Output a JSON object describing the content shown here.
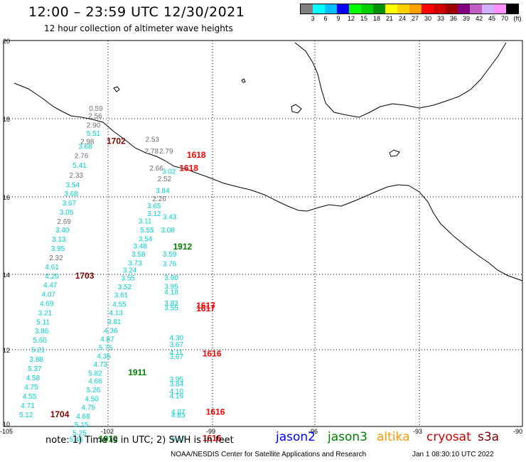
{
  "header": {
    "title": "12:00 – 23:59 UTC 12/30/2021",
    "subtitle": "12 hour collection of altimeter wave heights"
  },
  "colorbar": {
    "colors": [
      "#808080",
      "#00ffff",
      "#00bfff",
      "#0000ff",
      "#00ff00",
      "#00d000",
      "#009000",
      "#ffff00",
      "#ffd000",
      "#ffa000",
      "#ff0000",
      "#d00000",
      "#a00000",
      "#800080",
      "#c060c0",
      "#d0b0ff",
      "#ff90ff",
      "#000000"
    ],
    "labels": [
      "3",
      "6",
      "9",
      "12",
      "15",
      "18",
      "21",
      "24",
      "27",
      "30",
      "33",
      "36",
      "39",
      "42",
      "45",
      "70",
      "(ft)"
    ]
  },
  "axes": {
    "x_ticks": [
      "-105",
      "-102",
      "-99",
      "-96",
      "-93",
      "-90"
    ],
    "y_ticks": [
      "20",
      "18",
      "16",
      "14",
      "12",
      "10"
    ]
  },
  "footer": {
    "note": "note: 1) Time is in UTC; 2) SWH is in feet",
    "credit": "NOAA/NESDIS Center for Satellite Applications and Research",
    "generated": "Jan  1 08:30:10 UTC 2022"
  },
  "legend": [
    {
      "name": "jason2",
      "color": "#0000ff"
    },
    {
      "name": "jason3",
      "color": "#008000"
    },
    {
      "name": "altika",
      "color": "#ff9900"
    },
    {
      "name": "cryosat",
      "color": "#cc0000"
    },
    {
      "name": "s3a",
      "color": "#800000"
    }
  ],
  "colors": {
    "gray": "#707070",
    "cyan": "#00d0d0",
    "darkred": "#800000",
    "red": "#ff0000",
    "green": "#008000"
  },
  "map_labels": [
    {
      "t": "0.59",
      "lon": -102.53,
      "lat": 18.18,
      "c": "gray"
    },
    {
      "t": "2.56",
      "lon": -102.55,
      "lat": 17.98,
      "c": "gray"
    },
    {
      "t": "2.90",
      "lon": -102.6,
      "lat": 17.74,
      "c": "gray"
    },
    {
      "t": "5.51",
      "lon": -102.6,
      "lat": 17.53,
      "c": "cyan"
    },
    {
      "t": "2.98",
      "lon": -102.78,
      "lat": 17.32,
      "c": "gray"
    },
    {
      "t": "1702",
      "lon": -102.02,
      "lat": 17.32,
      "c": "darkred"
    },
    {
      "t": "3.68",
      "lon": -102.84,
      "lat": 17.19,
      "c": "cyan"
    },
    {
      "t": "2.76",
      "lon": -102.95,
      "lat": 16.95,
      "c": "gray"
    },
    {
      "t": "5.41",
      "lon": -103.0,
      "lat": 16.7,
      "c": "cyan"
    },
    {
      "t": "2.33",
      "lon": -103.1,
      "lat": 16.45,
      "c": "gray"
    },
    {
      "t": "3.54",
      "lon": -103.2,
      "lat": 16.2,
      "c": "cyan"
    },
    {
      "t": "3.68",
      "lon": -103.25,
      "lat": 15.97,
      "c": "cyan"
    },
    {
      "t": "3.67",
      "lon": -103.3,
      "lat": 15.73,
      "c": "cyan"
    },
    {
      "t": "3.05",
      "lon": -103.38,
      "lat": 15.49,
      "c": "cyan"
    },
    {
      "t": "2.69",
      "lon": -103.45,
      "lat": 15.25,
      "c": "gray"
    },
    {
      "t": "3.40",
      "lon": -103.5,
      "lat": 15.03,
      "c": "cyan"
    },
    {
      "t": "3.13",
      "lon": -103.6,
      "lat": 14.79,
      "c": "cyan"
    },
    {
      "t": "3.95",
      "lon": -103.63,
      "lat": 14.55,
      "c": "cyan"
    },
    {
      "t": "2.32",
      "lon": -103.68,
      "lat": 14.31,
      "c": "gray"
    },
    {
      "t": "4.61",
      "lon": -103.8,
      "lat": 14.07,
      "c": "cyan"
    },
    {
      "t": "4.20",
      "lon": -103.8,
      "lat": 13.83,
      "c": "cyan"
    },
    {
      "t": "1703",
      "lon": -102.93,
      "lat": 13.83,
      "c": "darkred"
    },
    {
      "t": "4.47",
      "lon": -103.85,
      "lat": 13.6,
      "c": "cyan"
    },
    {
      "t": "4.07",
      "lon": -103.9,
      "lat": 13.36,
      "c": "cyan"
    },
    {
      "t": "4.69",
      "lon": -103.95,
      "lat": 13.12,
      "c": "cyan"
    },
    {
      "t": "3.21",
      "lon": -104.0,
      "lat": 12.88,
      "c": "cyan"
    },
    {
      "t": "5.11",
      "lon": -104.05,
      "lat": 12.64,
      "c": "cyan"
    },
    {
      "t": "3.86",
      "lon": -104.1,
      "lat": 12.41,
      "c": "cyan"
    },
    {
      "t": "5.60",
      "lon": -104.15,
      "lat": 12.17,
      "c": "cyan"
    },
    {
      "t": "5.21",
      "lon": -104.2,
      "lat": 11.92,
      "c": "cyan"
    },
    {
      "t": "3.88",
      "lon": -104.25,
      "lat": 11.68,
      "c": "cyan"
    },
    {
      "t": "5.37",
      "lon": -104.3,
      "lat": 11.44,
      "c": "cyan"
    },
    {
      "t": "4.58",
      "lon": -104.35,
      "lat": 11.2,
      "c": "cyan"
    },
    {
      "t": "4.75",
      "lon": -104.4,
      "lat": 10.96,
      "c": "cyan"
    },
    {
      "t": "4.55",
      "lon": -104.45,
      "lat": 10.72,
      "c": "cyan"
    },
    {
      "t": "4.71",
      "lon": -104.5,
      "lat": 10.48,
      "c": "cyan"
    },
    {
      "t": "5.12",
      "lon": -104.55,
      "lat": 10.24,
      "c": "cyan"
    },
    {
      "t": "1704",
      "lon": -103.65,
      "lat": 10.24,
      "c": "darkred"
    },
    {
      "t": "2.53",
      "lon": -100.9,
      "lat": 17.38,
      "c": "gray"
    },
    {
      "t": "2.78",
      "lon": -100.92,
      "lat": 17.07,
      "c": "gray"
    },
    {
      "t": "2.79",
      "lon": -100.5,
      "lat": 17.07,
      "c": "gray"
    },
    {
      "t": "1618",
      "lon": -99.7,
      "lat": 16.96,
      "c": "red"
    },
    {
      "t": "1618",
      "lon": -99.92,
      "lat": 16.62,
      "c": "red"
    },
    {
      "t": "2.66",
      "lon": -100.78,
      "lat": 16.63,
      "c": "gray"
    },
    {
      "t": "3.02",
      "lon": -100.42,
      "lat": 16.55,
      "c": "cyan"
    },
    {
      "t": "2.52",
      "lon": -100.55,
      "lat": 16.35,
      "c": "gray"
    },
    {
      "t": "3.84",
      "lon": -100.6,
      "lat": 16.05,
      "c": "cyan"
    },
    {
      "t": "2.26",
      "lon": -100.7,
      "lat": 15.84,
      "c": "gray"
    },
    {
      "t": "3.65",
      "lon": -100.85,
      "lat": 15.65,
      "c": "cyan"
    },
    {
      "t": "3.12",
      "lon": -100.85,
      "lat": 15.45,
      "c": "cyan"
    },
    {
      "t": "3.43",
      "lon": -100.4,
      "lat": 15.37,
      "c": "cyan"
    },
    {
      "t": "3.11",
      "lon": -101.1,
      "lat": 15.26,
      "c": "cyan"
    },
    {
      "t": "5.55",
      "lon": -101.05,
      "lat": 15.03,
      "c": "cyan"
    },
    {
      "t": "3.08",
      "lon": -100.45,
      "lat": 15.03,
      "c": "cyan"
    },
    {
      "t": "3.54",
      "lon": -101.1,
      "lat": 14.8,
      "c": "cyan"
    },
    {
      "t": "3.48",
      "lon": -101.25,
      "lat": 14.61,
      "c": "cyan"
    },
    {
      "t": "1912",
      "lon": -100.1,
      "lat": 14.59,
      "c": "green"
    },
    {
      "t": "3.58",
      "lon": -101.3,
      "lat": 14.4,
      "c": "cyan"
    },
    {
      "t": "3.59",
      "lon": -100.4,
      "lat": 14.4,
      "c": "cyan"
    },
    {
      "t": "3.73",
      "lon": -101.4,
      "lat": 14.17,
      "c": "cyan"
    },
    {
      "t": "3.76",
      "lon": -100.4,
      "lat": 14.15,
      "c": "cyan"
    },
    {
      "t": "3.24",
      "lon": -101.55,
      "lat": 13.99,
      "c": "cyan"
    },
    {
      "t": "3.55",
      "lon": -101.6,
      "lat": 13.78,
      "c": "cyan"
    },
    {
      "t": "3.90",
      "lon": -100.35,
      "lat": 13.79,
      "c": "cyan"
    },
    {
      "t": "3.52",
      "lon": -101.7,
      "lat": 13.55,
      "c": "cyan"
    },
    {
      "t": "3.95",
      "lon": -100.35,
      "lat": 13.56,
      "c": "cyan"
    },
    {
      "t": "3.61",
      "lon": -101.8,
      "lat": 13.34,
      "c": "cyan"
    },
    {
      "t": "4.18",
      "lon": -100.35,
      "lat": 13.42,
      "c": "cyan"
    },
    {
      "t": "4.55",
      "lon": -101.85,
      "lat": 13.1,
      "c": "cyan"
    },
    {
      "t": "3.83",
      "lon": -100.35,
      "lat": 13.13,
      "c": "cyan"
    },
    {
      "t": "3.55",
      "lon": -100.35,
      "lat": 13.01,
      "c": "cyan"
    },
    {
      "t": "1617",
      "lon": -99.43,
      "lat": 13.06,
      "c": "red"
    },
    {
      "t": "1617",
      "lon": -99.43,
      "lat": 12.98,
      "c": "red"
    },
    {
      "t": "4.13",
      "lon": -101.95,
      "lat": 12.88,
      "c": "cyan"
    },
    {
      "t": "3.81",
      "lon": -102.0,
      "lat": 12.65,
      "c": "cyan"
    },
    {
      "t": "4.36",
      "lon": -102.1,
      "lat": 12.42,
      "c": "cyan"
    },
    {
      "t": "4.87",
      "lon": -102.2,
      "lat": 12.2,
      "c": "cyan"
    },
    {
      "t": "4.30",
      "lon": -100.2,
      "lat": 12.24,
      "c": "cyan"
    },
    {
      "t": "5.75",
      "lon": -102.25,
      "lat": 11.98,
      "c": "cyan"
    },
    {
      "t": "3.67",
      "lon": -100.2,
      "lat": 12.06,
      "c": "cyan"
    },
    {
      "t": "4.35",
      "lon": -102.3,
      "lat": 11.76,
      "c": "cyan"
    },
    {
      "t": "4.11",
      "lon": -100.2,
      "lat": 11.86,
      "c": "cyan"
    },
    {
      "t": "1616",
      "lon": -99.25,
      "lat": 11.81,
      "c": "red"
    },
    {
      "t": "3.67",
      "lon": -100.2,
      "lat": 11.75,
      "c": "cyan"
    },
    {
      "t": "4.73",
      "lon": -102.4,
      "lat": 11.55,
      "c": "cyan"
    },
    {
      "t": "5.82",
      "lon": -102.55,
      "lat": 11.32,
      "c": "cyan"
    },
    {
      "t": "1911",
      "lon": -101.4,
      "lat": 11.33,
      "c": "green"
    },
    {
      "t": "4.66",
      "lon": -102.55,
      "lat": 11.11,
      "c": "cyan"
    },
    {
      "t": "3.95",
      "lon": -100.2,
      "lat": 11.16,
      "c": "cyan"
    },
    {
      "t": "3.84",
      "lon": -100.2,
      "lat": 11.04,
      "c": "cyan"
    },
    {
      "t": "5.26",
      "lon": -102.6,
      "lat": 10.88,
      "c": "cyan"
    },
    {
      "t": "4.10",
      "lon": -100.2,
      "lat": 10.85,
      "c": "cyan"
    },
    {
      "t": "4.50",
      "lon": -102.65,
      "lat": 10.65,
      "c": "cyan"
    },
    {
      "t": "4.19",
      "lon": -100.2,
      "lat": 10.73,
      "c": "cyan"
    },
    {
      "t": "4.75",
      "lon": -102.75,
      "lat": 10.43,
      "c": "cyan"
    },
    {
      "t": "4.68",
      "lon": -102.9,
      "lat": 10.2,
      "c": "cyan"
    },
    {
      "t": "5.15",
      "lon": -102.95,
      "lat": 9.98,
      "c": "cyan"
    },
    {
      "t": "4.07",
      "lon": -100.15,
      "lat": 10.31,
      "c": "cyan"
    },
    {
      "t": "4.83",
      "lon": -100.15,
      "lat": 10.23,
      "c": "cyan"
    },
    {
      "t": "1616",
      "lon": -99.15,
      "lat": 10.3,
      "c": "red"
    },
    {
      "t": "5.25",
      "lon": -103.0,
      "lat": 9.77,
      "c": "cyan"
    },
    {
      "t": "5.46",
      "lon": -103.1,
      "lat": 9.6,
      "c": "cyan"
    },
    {
      "t": "1910",
      "lon": -102.25,
      "lat": 9.6,
      "c": "green"
    },
    {
      "t": "5.12",
      "lon": -100.15,
      "lat": 9.62,
      "c": "cyan"
    },
    {
      "t": "1616",
      "lon": -99.25,
      "lat": 9.62,
      "c": "red"
    }
  ]
}
